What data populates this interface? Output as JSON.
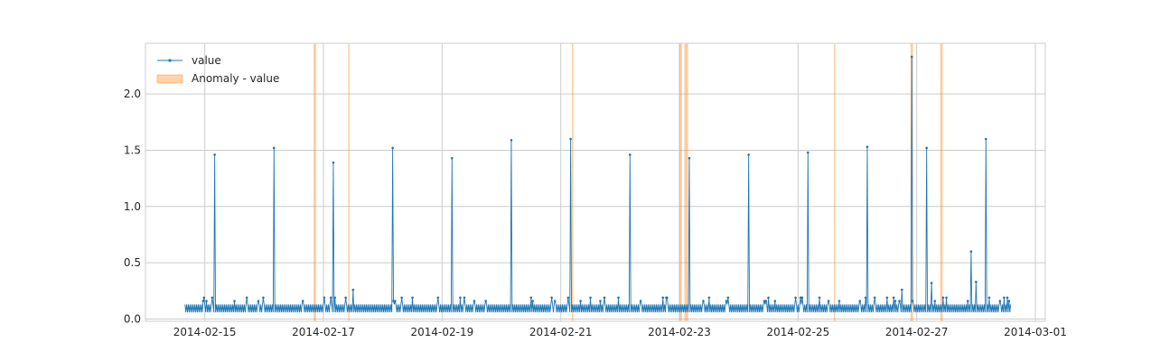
{
  "chart_data": {
    "type": "line",
    "title": "",
    "xlabel": "",
    "ylabel": "",
    "x_axis": {
      "type": "date",
      "range": [
        "2014-02-14T00:00",
        "2014-03-01T04:00"
      ],
      "tick_labels": [
        "2014-02-15",
        "2014-02-17",
        "2014-02-19",
        "2014-02-21",
        "2014-02-23",
        "2014-02-25",
        "2014-02-27",
        "2014-03-01"
      ]
    },
    "y_axis": {
      "range": [
        -0.02,
        2.45
      ],
      "ticks": [
        0.0,
        0.5,
        1.0,
        1.5,
        2.0
      ],
      "tick_labels": [
        "0.0",
        "0.5",
        "1.0",
        "1.5",
        "2.0"
      ]
    },
    "grid": true,
    "legend": {
      "placement": "top-left",
      "entries": [
        "value",
        "Anomaly - value"
      ]
    },
    "series": [
      {
        "name": "value",
        "color": "#1f77b4",
        "marker": "dot",
        "baseline_low": 0.06,
        "baseline_high": 0.13,
        "baseline_start": "2014-02-14T16:00",
        "baseline_end": "2014-02-28T14:00",
        "peaks": [
          {
            "x": "2014-02-15T04:00",
            "y": 1.46
          },
          {
            "x": "2014-02-16T04:00",
            "y": 1.52
          },
          {
            "x": "2014-02-17T04:00",
            "y": 1.39
          },
          {
            "x": "2014-02-18T04:00",
            "y": 1.52
          },
          {
            "x": "2014-02-19T04:00",
            "y": 1.43
          },
          {
            "x": "2014-02-20T04:00",
            "y": 1.59
          },
          {
            "x": "2014-02-21T04:00",
            "y": 1.6
          },
          {
            "x": "2014-02-22T04:00",
            "y": 1.46
          },
          {
            "x": "2014-02-23T04:00",
            "y": 1.43
          },
          {
            "x": "2014-02-24T04:00",
            "y": 1.46
          },
          {
            "x": "2014-02-25T04:00",
            "y": 1.48
          },
          {
            "x": "2014-02-26T04:00",
            "y": 1.53
          },
          {
            "x": "2014-02-26T22:00",
            "y": 2.33
          },
          {
            "x": "2014-02-27T04:00",
            "y": 1.52
          },
          {
            "x": "2014-02-27T22:00",
            "y": 0.6
          },
          {
            "x": "2014-02-28T00:00",
            "y": 0.33
          },
          {
            "x": "2014-02-28T04:00",
            "y": 1.6
          },
          {
            "x": "2014-02-17T12:00",
            "y": 0.26
          },
          {
            "x": "2014-02-27T06:00",
            "y": 0.32
          },
          {
            "x": "2014-02-26T18:00",
            "y": 0.26
          }
        ]
      }
    ],
    "anomalies": {
      "name": "Anomaly - value",
      "color": "#ff7f0e",
      "ranges": [
        [
          "2014-02-16T20:00",
          "2014-02-16T21:00"
        ],
        [
          "2014-02-17T10:00",
          "2014-02-17T10:30"
        ],
        [
          "2014-02-21T04:30",
          "2014-02-21T05:00"
        ],
        [
          "2014-02-23T00:00",
          "2014-02-23T01:00"
        ],
        [
          "2014-02-23T02:00",
          "2014-02-23T03:30"
        ],
        [
          "2014-02-25T14:30",
          "2014-02-25T15:00"
        ],
        [
          "2014-02-26T21:30",
          "2014-02-26T22:30"
        ],
        [
          "2014-02-27T09:30",
          "2014-02-27T10:30"
        ]
      ]
    }
  }
}
